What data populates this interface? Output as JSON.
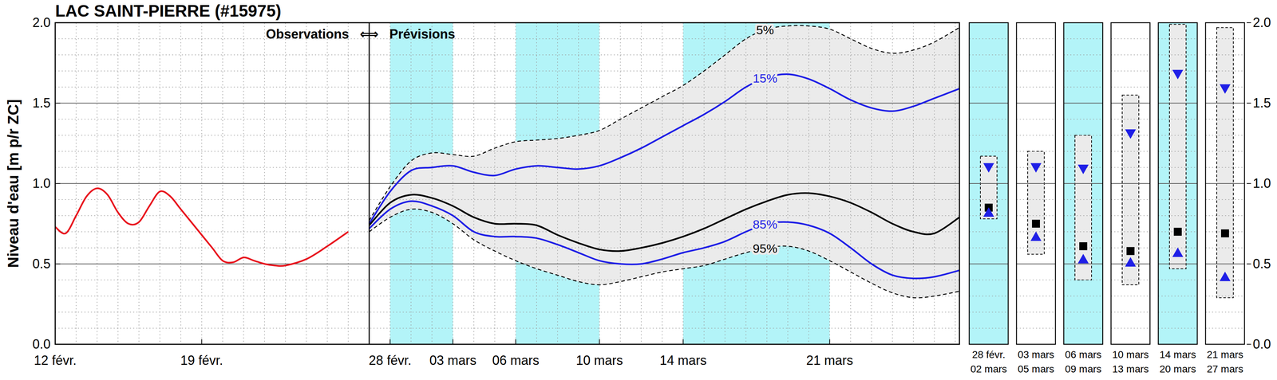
{
  "chart_data": [
    {
      "type": "line",
      "title": "LAC SAINT-PIERRE (#15975)",
      "y_label": "Niveau d'eau [m p/r ZC]",
      "annotations": [
        "Observations",
        "⟺",
        "Prévisions"
      ],
      "forecast_start": 15,
      "highlight_periods": [
        [
          16,
          19
        ],
        [
          22,
          26
        ],
        [
          30,
          37
        ]
      ],
      "xlim": [
        0,
        43.2
      ],
      "xticks": [
        {
          "value": 0,
          "label": "12 févr."
        },
        {
          "value": 7,
          "label": "19 févr."
        },
        {
          "value": 16,
          "label": "28 févr."
        },
        {
          "value": 19,
          "label": "03 mars"
        },
        {
          "value": 22,
          "label": "06 mars"
        },
        {
          "value": 26,
          "label": "10 mars"
        },
        {
          "value": 30,
          "label": "14 mars"
        },
        {
          "value": 37,
          "label": "21 mars"
        }
      ],
      "ylim": [
        0,
        2
      ],
      "yticks": [
        {
          "value": 0,
          "label": "0.0"
        },
        0.5,
        {
          "value": 1,
          "label": "1.0"
        },
        1.5,
        {
          "value": 2,
          "label": "2.0"
        }
      ],
      "grid": true,
      "series": [
        {
          "color": "#e8141e",
          "line_style": "solid",
          "x": [
            0,
            0.5,
            1,
            1.5,
            2,
            2.5,
            3,
            3.5,
            4,
            4.5,
            5,
            5.5,
            6,
            7,
            7.5,
            8,
            8.5,
            9,
            9.5,
            10,
            10.5,
            11,
            12,
            13,
            14
          ],
          "values": [
            0.73,
            0.69,
            0.8,
            0.92,
            0.97,
            0.93,
            0.82,
            0.75,
            0.76,
            0.86,
            0.95,
            0.92,
            0.84,
            0.68,
            0.6,
            0.52,
            0.51,
            0.54,
            0.52,
            0.5,
            0.49,
            0.49,
            0.53,
            0.61,
            0.7
          ]
        },
        {
          "name": "5%",
          "color": "#000000",
          "line_style": "dashed",
          "x": [
            15,
            16,
            17,
            18,
            19,
            20,
            21,
            22,
            23,
            24,
            25,
            26,
            27,
            28,
            29,
            30,
            31,
            32,
            33,
            34,
            35,
            36,
            37,
            38,
            39,
            40,
            41,
            42,
            43.2
          ],
          "values": [
            0.77,
            0.98,
            1.14,
            1.19,
            1.18,
            1.17,
            1.22,
            1.26,
            1.27,
            1.28,
            1.3,
            1.33,
            1.4,
            1.47,
            1.54,
            1.61,
            1.7,
            1.8,
            1.9,
            1.96,
            1.98,
            1.98,
            1.96,
            1.9,
            1.84,
            1.81,
            1.83,
            1.88,
            1.97
          ]
        },
        {
          "name": "15%",
          "color": "#1f1fe6",
          "line_style": "solid",
          "x": [
            15,
            16,
            17,
            18,
            19,
            20,
            21,
            22,
            23,
            24,
            25,
            26,
            27,
            28,
            29,
            30,
            31,
            32,
            33,
            34,
            35,
            36,
            37,
            38,
            39,
            40,
            41,
            42,
            43.2
          ],
          "values": [
            0.75,
            0.95,
            1.08,
            1.1,
            1.11,
            1.07,
            1.05,
            1.09,
            1.11,
            1.1,
            1.09,
            1.11,
            1.16,
            1.22,
            1.29,
            1.36,
            1.43,
            1.51,
            1.6,
            1.66,
            1.68,
            1.65,
            1.59,
            1.52,
            1.47,
            1.45,
            1.48,
            1.53,
            1.59
          ]
        },
        {
          "color": "#000000",
          "line_style": "solid",
          "x": [
            15,
            16,
            17,
            18,
            19,
            20,
            21,
            22,
            23,
            24,
            25,
            26,
            27,
            28,
            29,
            30,
            31,
            32,
            33,
            34,
            35,
            36,
            37,
            38,
            39,
            40,
            41,
            42,
            43.2
          ],
          "values": [
            0.74,
            0.88,
            0.93,
            0.91,
            0.86,
            0.79,
            0.75,
            0.75,
            0.74,
            0.68,
            0.63,
            0.59,
            0.58,
            0.6,
            0.63,
            0.67,
            0.72,
            0.78,
            0.84,
            0.89,
            0.93,
            0.94,
            0.92,
            0.88,
            0.82,
            0.75,
            0.7,
            0.69,
            0.79
          ]
        },
        {
          "name": "85%",
          "color": "#1f1fe6",
          "line_style": "solid",
          "x": [
            15,
            16,
            17,
            18,
            19,
            20,
            21,
            22,
            23,
            24,
            25,
            26,
            27,
            28,
            29,
            30,
            31,
            32,
            33,
            34,
            35,
            36,
            37,
            38,
            39,
            40,
            41,
            42,
            43.2
          ],
          "values": [
            0.72,
            0.84,
            0.89,
            0.86,
            0.8,
            0.7,
            0.67,
            0.67,
            0.66,
            0.62,
            0.57,
            0.52,
            0.5,
            0.5,
            0.53,
            0.57,
            0.6,
            0.64,
            0.7,
            0.75,
            0.76,
            0.74,
            0.69,
            0.6,
            0.5,
            0.43,
            0.41,
            0.42,
            0.46
          ]
        },
        {
          "name": "95%",
          "color": "#000000",
          "line_style": "dashed",
          "x": [
            15,
            16,
            17,
            18,
            19,
            20,
            21,
            22,
            23,
            24,
            25,
            26,
            27,
            28,
            29,
            30,
            31,
            32,
            33,
            34,
            35,
            36,
            37,
            38,
            39,
            40,
            41,
            42,
            43.2
          ],
          "values": [
            0.7,
            0.79,
            0.84,
            0.82,
            0.75,
            0.65,
            0.58,
            0.52,
            0.47,
            0.43,
            0.39,
            0.37,
            0.39,
            0.42,
            0.45,
            0.47,
            0.49,
            0.53,
            0.57,
            0.6,
            0.61,
            0.58,
            0.52,
            0.45,
            0.38,
            0.32,
            0.29,
            0.3,
            0.33
          ]
        }
      ]
    },
    {
      "type": "range",
      "categories": [
        "28 févr.\n02 mars",
        "03 mars\n05 mars",
        "06 mars\n09 mars",
        "10 mars\n13 mars",
        "14 mars\n20 mars",
        "21 mars\n27 mars"
      ],
      "colors": [
        "#b3f4f8",
        "#ffffff",
        "#b3f4f8",
        "#ffffff",
        "#b3f4f8",
        "#ffffff"
      ],
      "ylim": [
        0,
        2
      ],
      "yticks": [
        {
          "value": 0,
          "label": "0.0"
        },
        0.5,
        {
          "value": 1,
          "label": "1.0"
        },
        1.5,
        {
          "value": 2,
          "label": "2.0"
        }
      ],
      "grid": true,
      "series": [
        {
          "type": "range",
          "color": "#ebebeb",
          "line_style": "dashed",
          "low": [
            0.78,
            0.56,
            0.4,
            0.37,
            0.47,
            0.29
          ],
          "high": [
            1.17,
            1.2,
            1.3,
            1.55,
            1.99,
            1.97
          ]
        },
        {
          "marker": "triangle-down",
          "color": "#1f1fe6",
          "values": [
            1.1,
            1.1,
            1.09,
            1.31,
            1.68,
            1.59
          ]
        },
        {
          "marker": "square",
          "color": "#000000",
          "values": [
            0.85,
            0.75,
            0.61,
            0.58,
            0.7,
            0.69
          ]
        },
        {
          "marker": "triangle-up",
          "color": "#1f1fe6",
          "values": [
            0.82,
            0.67,
            0.53,
            0.51,
            0.57,
            0.42
          ]
        }
      ]
    }
  ]
}
